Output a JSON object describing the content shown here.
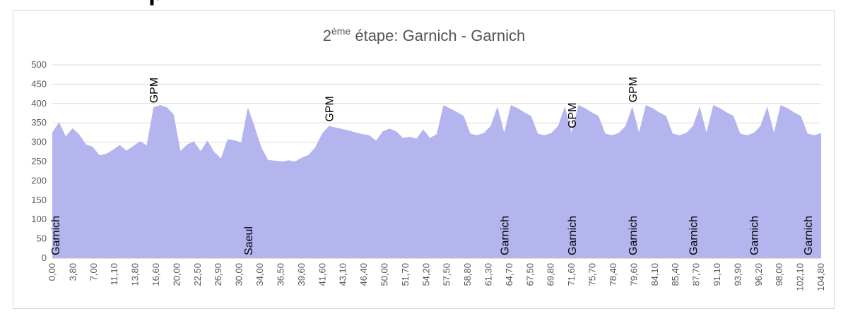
{
  "chart_data": {
    "type": "area",
    "title": "2ème étape: Garnich - Garnich",
    "title_main": "2",
    "title_sup": "ème",
    "title_rest": " étape: Garnich - Garnich",
    "xlabel": "",
    "ylabel": "",
    "ylim": [
      0,
      500
    ],
    "y_ticks": [
      "0",
      "50",
      "100",
      "150",
      "200",
      "250",
      "300",
      "350",
      "400",
      "450",
      "500"
    ],
    "grid": true,
    "fill_color": "#b4b4ee",
    "x_tick_labels": [
      "0,00",
      "3,80",
      "7,00",
      "11,10",
      "13,80",
      "16,60",
      "20,00",
      "22,50",
      "26,90",
      "30,00",
      "34,00",
      "36,50",
      "39,60",
      "41,60",
      "43,10",
      "46,40",
      "50,00",
      "51,70",
      "54,20",
      "57,50",
      "58,80",
      "61,30",
      "64,70",
      "67,50",
      "69,80",
      "71,60",
      "75,70",
      "78,40",
      "79,60",
      "84,10",
      "85,40",
      "87,70",
      "91,10",
      "93,90",
      "96,20",
      "98,00",
      "102,10",
      "104,80"
    ],
    "values": [
      325,
      352,
      315,
      336,
      320,
      294,
      288,
      266,
      270,
      280,
      293,
      278,
      290,
      302,
      292,
      390,
      396,
      390,
      372,
      277,
      294,
      302,
      277,
      304,
      275,
      258,
      308,
      305,
      299,
      390,
      340,
      286,
      254,
      252,
      250,
      253,
      250,
      260,
      267,
      287,
      322,
      342,
      338,
      334,
      330,
      325,
      321,
      318,
      304,
      328,
      335,
      328,
      311,
      314,
      309,
      333,
      311,
      321,
      396,
      387,
      378,
      368,
      322,
      318,
      324,
      342,
      392,
      325,
      396,
      388,
      377,
      368,
      322,
      318,
      324,
      342,
      392,
      325,
      396,
      388,
      377,
      368,
      322,
      318,
      324,
      342,
      392,
      325,
      396,
      388,
      377,
      368,
      322,
      318,
      324,
      342,
      392,
      325,
      396,
      388,
      377,
      368,
      322,
      318,
      324,
      342,
      392,
      325,
      396,
      388,
      377,
      368,
      322,
      318,
      324
    ],
    "annotations": [
      {
        "text": "GPM",
        "index": 15,
        "kind": "peak"
      },
      {
        "text": "GPM",
        "index": 41,
        "kind": "peak"
      },
      {
        "text": "GPM",
        "index": 77,
        "kind": "peak"
      },
      {
        "text": "GPM",
        "index": 86,
        "kind": "peak"
      },
      {
        "text": "Garnich",
        "index": 0,
        "kind": "base"
      },
      {
        "text": "Saeul",
        "index": 29,
        "kind": "base"
      },
      {
        "text": "Garnich",
        "index": 67,
        "kind": "base"
      },
      {
        "text": "Garnich",
        "index": 77,
        "kind": "base"
      },
      {
        "text": "Garnich",
        "index": 86,
        "kind": "base"
      },
      {
        "text": "Garnich",
        "index": 95,
        "kind": "base"
      },
      {
        "text": "Garnich",
        "index": 104,
        "kind": "base"
      },
      {
        "text": "Garnich",
        "index": 112,
        "kind": "base"
      }
    ]
  }
}
